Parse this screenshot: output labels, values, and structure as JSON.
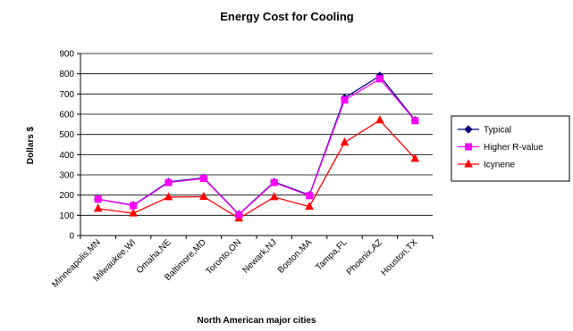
{
  "chart_data": {
    "type": "line",
    "title": "Energy Cost for Cooling",
    "xlabel": "North American major cities",
    "ylabel": "Dollars $",
    "ylim": [
      0,
      900
    ],
    "yticks": [
      0,
      100,
      200,
      300,
      400,
      500,
      600,
      700,
      800,
      900
    ],
    "grid": true,
    "legend_position": "right",
    "categories": [
      "Minneapolis,MN",
      "Milwaukee,WI",
      "Omaha,NE",
      "Baltimore,MD",
      "Toronto,ON",
      "Newark,NJ",
      "Boston,MA",
      "Tampa,FL",
      "Phoenix,AZ",
      "Houston,TX"
    ],
    "series": [
      {
        "name": "Typical",
        "color": "#000080",
        "marker": "diamond",
        "values": [
          180,
          150,
          265,
          285,
          105,
          265,
          200,
          680,
          790,
          570
        ]
      },
      {
        "name": "Higher R-value",
        "color": "#ff00ff",
        "marker": "square",
        "values": [
          180,
          148,
          262,
          282,
          103,
          262,
          197,
          670,
          775,
          568
        ]
      },
      {
        "name": "Icynene",
        "color": "#ff0000",
        "marker": "triangle",
        "values": [
          133,
          110,
          190,
          192,
          85,
          190,
          143,
          460,
          570,
          380
        ]
      }
    ]
  }
}
